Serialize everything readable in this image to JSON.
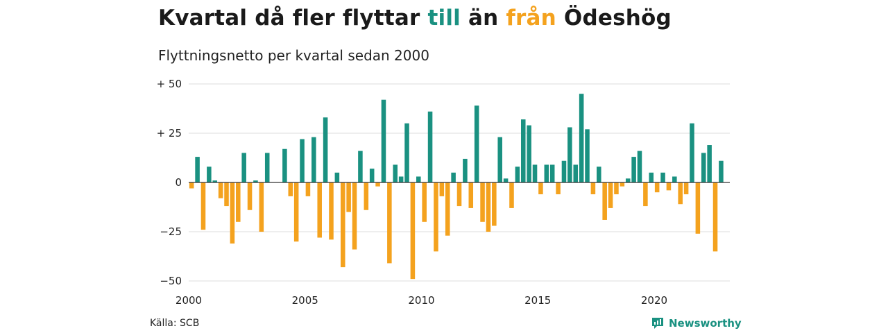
{
  "title": {
    "part1": "Kvartal då fler flyttar ",
    "pos_word": "till",
    "part2": " än ",
    "neg_word": "från",
    "part3": " Ödeshög"
  },
  "subtitle": "Flyttningsnetto per kvartal sedan 2000",
  "source": "Källa: SCB",
  "brand": "Newsworthy",
  "colors": {
    "positive": "#1a9181",
    "negative": "#f4a21e",
    "grid": "#dddddd",
    "baseline": "#333333"
  },
  "chart_data": {
    "type": "bar",
    "title": "",
    "xlabel": "",
    "ylabel": "",
    "x_start": 2000,
    "x_step": 0.25,
    "xlim": [
      2000,
      2023.25
    ],
    "ylim": [
      -50,
      50
    ],
    "yticks": [
      {
        "value": 50,
        "label": "+ 50"
      },
      {
        "value": 25,
        "label": "+ 25"
      },
      {
        "value": 0,
        "label": "0"
      },
      {
        "value": -25,
        "label": "−25"
      },
      {
        "value": -50,
        "label": "−50"
      }
    ],
    "xticks": [
      {
        "value": 2000,
        "label": "2000"
      },
      {
        "value": 2005,
        "label": "2005"
      },
      {
        "value": 2010,
        "label": "2010"
      },
      {
        "value": 2015,
        "label": "2015"
      },
      {
        "value": 2020,
        "label": "2020"
      }
    ],
    "grid": true,
    "values": [
      -3,
      13,
      -24,
      8,
      1,
      -8,
      -12,
      -31,
      -20,
      15,
      -14,
      1,
      -25,
      15,
      0,
      0,
      17,
      -7,
      -30,
      22,
      -7,
      23,
      -28,
      33,
      -29,
      5,
      -43,
      -15,
      -34,
      16,
      -14,
      7,
      -2,
      42,
      -41,
      9,
      3,
      30,
      -49,
      3,
      -20,
      36,
      -35,
      -7,
      -27,
      5,
      -12,
      12,
      -13,
      39,
      -20,
      -25,
      -22,
      23,
      2,
      -13,
      8,
      32,
      29,
      9,
      -6,
      9,
      9,
      -6,
      11,
      28,
      9,
      45,
      27,
      -6,
      8,
      -19,
      -13,
      -6,
      -2,
      2,
      13,
      16,
      -12,
      5,
      -5,
      5,
      -4,
      3,
      -11,
      -6,
      30,
      -26,
      15,
      19,
      -35,
      11
    ]
  }
}
